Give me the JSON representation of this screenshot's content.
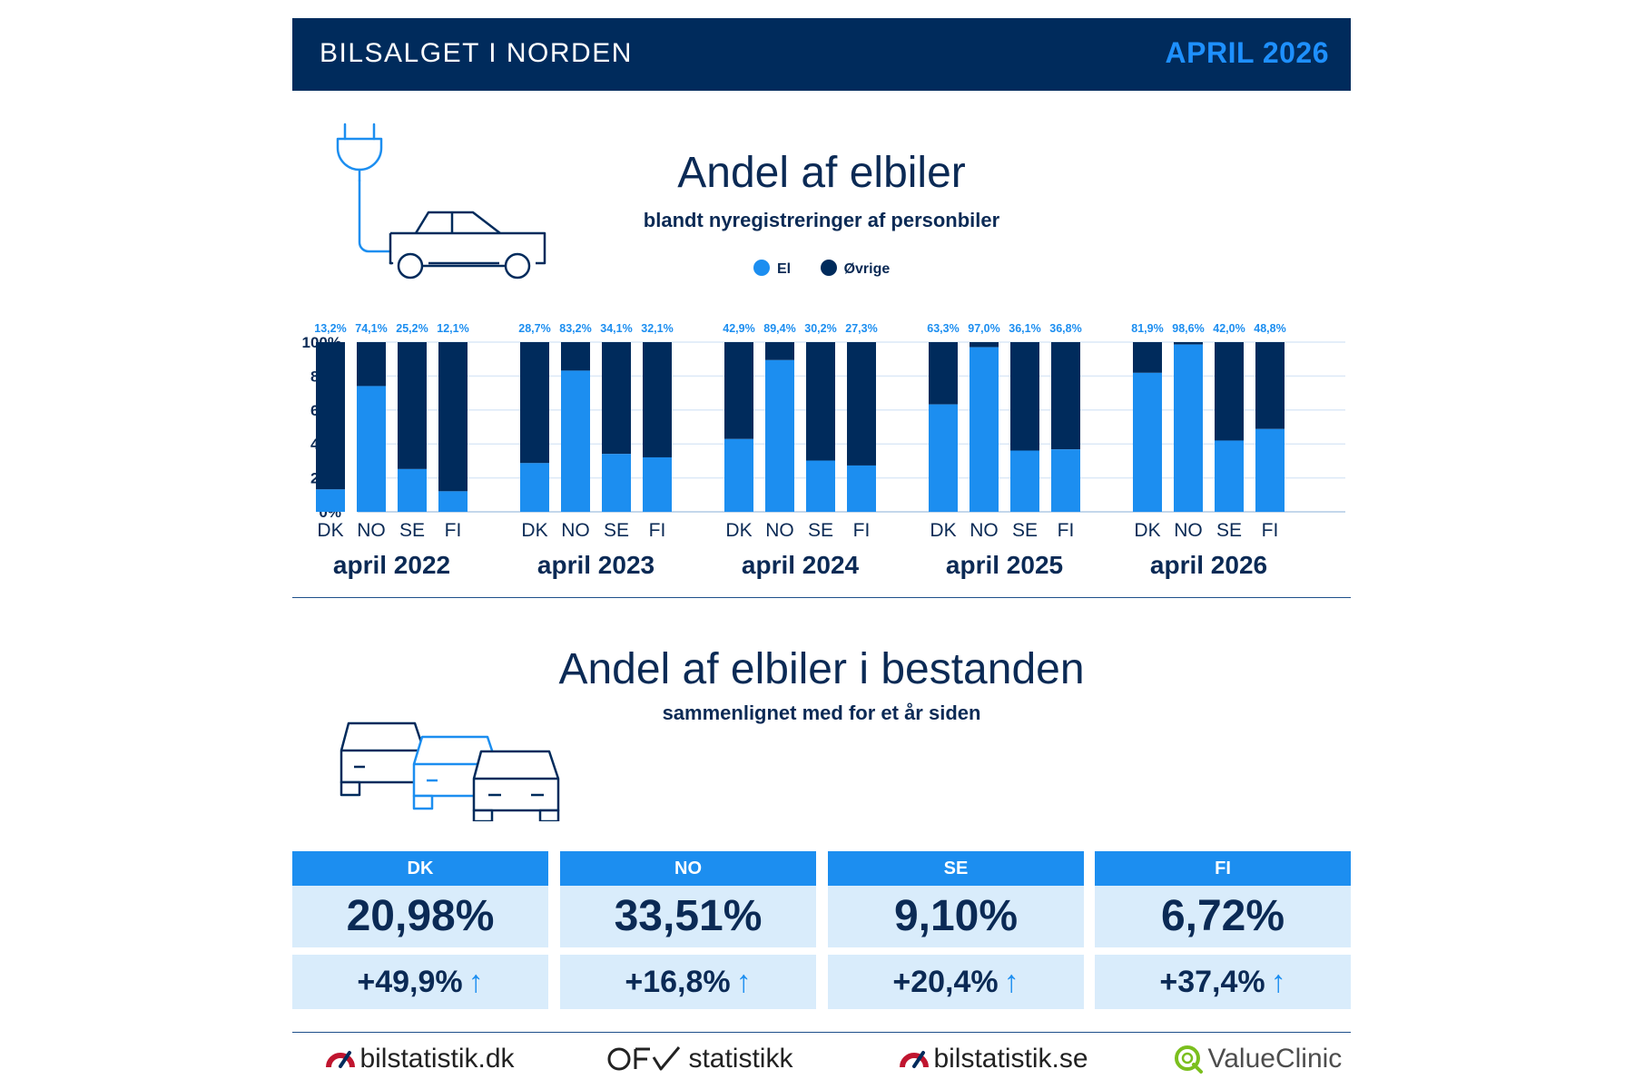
{
  "header": {
    "brand": "BILSALGET I NORDEN",
    "period": "APRIL 2026"
  },
  "section1": {
    "title": "Andel af elbiler",
    "subtitle": "blandt nyregistreringer af personbiler",
    "legend": [
      {
        "label": "El",
        "color": "#1c8ef0"
      },
      {
        "label": "Øvrige",
        "color": "#002b5c"
      }
    ]
  },
  "chart_data": {
    "type": "bar",
    "stacked": true,
    "ylim": [
      0,
      100
    ],
    "yticks": [
      "0%",
      "20%",
      "40%",
      "60%",
      "80%",
      "100%"
    ],
    "countries": [
      "DK",
      "NO",
      "SE",
      "FI"
    ],
    "groups": [
      {
        "label": "april 2022",
        "values": [
          13.2,
          74.1,
          25.2,
          12.1
        ],
        "labels": [
          "13,2%",
          "74,1%",
          "25,2%",
          "12,1%"
        ]
      },
      {
        "label": "april 2023",
        "values": [
          28.7,
          83.2,
          34.1,
          32.1
        ],
        "labels": [
          "28,7%",
          "83,2%",
          "34,1%",
          "32,1%"
        ]
      },
      {
        "label": "april 2024",
        "values": [
          42.9,
          89.4,
          30.2,
          27.3
        ],
        "labels": [
          "42,9%",
          "89,4%",
          "30,2%",
          "27,3%"
        ]
      },
      {
        "label": "april 2025",
        "values": [
          63.3,
          97.0,
          36.1,
          36.8
        ],
        "labels": [
          "63,3%",
          "97,0%",
          "36,1%",
          "36,8%"
        ]
      },
      {
        "label": "april 2026",
        "values": [
          81.9,
          98.6,
          42.0,
          48.8
        ],
        "labels": [
          "81,9%",
          "98,6%",
          "42,0%",
          "48,8%"
        ]
      }
    ],
    "series": [
      {
        "name": "El",
        "color": "#1c8ef0"
      },
      {
        "name": "Øvrige",
        "color": "#002b5c"
      }
    ],
    "grid": true
  },
  "section2": {
    "title": "Andel af elbiler i bestanden",
    "subtitle": "sammenlignet med for et år siden",
    "stats": [
      {
        "country": "DK",
        "value": "20,98%",
        "change": "+49,9%"
      },
      {
        "country": "NO",
        "value": "33,51%",
        "change": "+16,8%"
      },
      {
        "country": "SE",
        "value": "9,10%",
        "change": "+20,4%"
      },
      {
        "country": "FI",
        "value": "6,72%",
        "change": "+37,4%"
      }
    ],
    "arrow_glyph": "↑"
  },
  "sources": [
    {
      "name": "bilstatistik.dk",
      "icon": "gauge-icon"
    },
    {
      "name": "statistikk",
      "icon": "ofv-logo"
    },
    {
      "name": "bilstatistik.se",
      "icon": "gauge-icon"
    },
    {
      "name": "ValueClinic",
      "icon": "valueclinic-q-icon"
    }
  ]
}
